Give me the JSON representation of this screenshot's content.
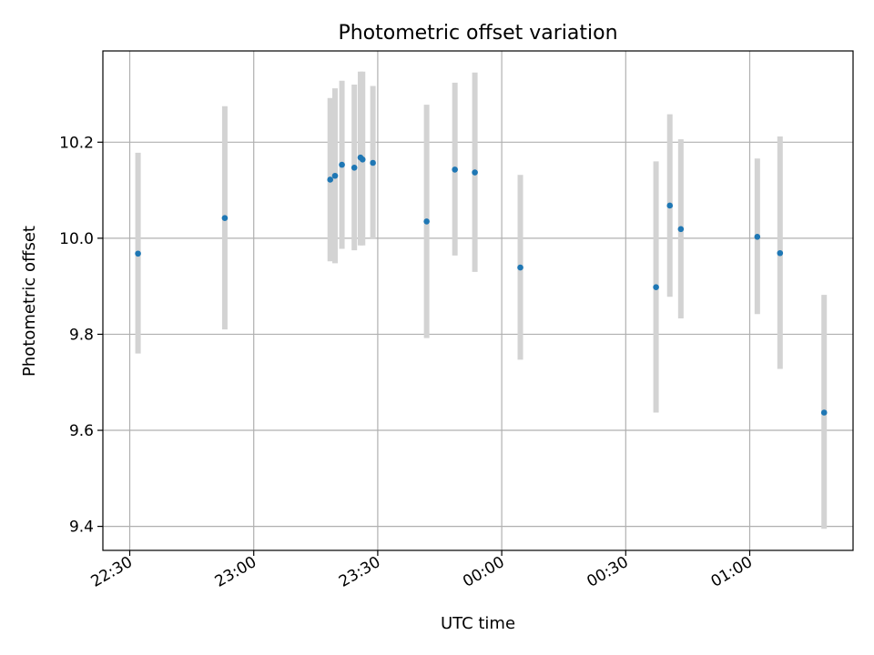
{
  "chart_data": {
    "type": "scatter",
    "title": "Photometric offset variation",
    "xlabel": "UTC time",
    "ylabel": "Photometric offset",
    "x_ticks": [
      "22:30",
      "23:00",
      "23:30",
      "00:00",
      "00:30",
      "01:00"
    ],
    "y_ticks": [
      "9.4",
      "9.6",
      "9.8",
      "10.0",
      "10.2"
    ],
    "xlim": [
      "22:23:30",
      "01:25:00"
    ],
    "ylim": [
      9.35,
      10.39
    ],
    "grid": true,
    "colors": {
      "point": "#1f77b4",
      "errorbar": "#d3d3d3",
      "grid": "#b0b0b0"
    },
    "series": [
      {
        "points": [
          {
            "x": "22:32:00",
            "y": 9.968,
            "ylow": 9.76,
            "yhigh": 10.178
          },
          {
            "x": "22:53:00",
            "y": 10.042,
            "ylow": 9.81,
            "yhigh": 10.275
          },
          {
            "x": "23:18:30",
            "y": 10.122,
            "ylow": 9.952,
            "yhigh": 10.292
          },
          {
            "x": "23:19:40",
            "y": 10.13,
            "ylow": 9.948,
            "yhigh": 10.312
          },
          {
            "x": "23:21:20",
            "y": 10.153,
            "ylow": 9.978,
            "yhigh": 10.328
          },
          {
            "x": "23:24:20",
            "y": 10.147,
            "ylow": 9.975,
            "yhigh": 10.32
          },
          {
            "x": "23:25:50",
            "y": 10.168,
            "ylow": 9.985,
            "yhigh": 10.347
          },
          {
            "x": "23:26:20",
            "y": 10.164,
            "ylow": 9.985,
            "yhigh": 10.347
          },
          {
            "x": "23:28:50",
            "y": 10.157,
            "ylow": 9.998,
            "yhigh": 10.317
          },
          {
            "x": "23:41:50",
            "y": 10.035,
            "ylow": 9.792,
            "yhigh": 10.278
          },
          {
            "x": "23:48:40",
            "y": 10.143,
            "ylow": 9.964,
            "yhigh": 10.324
          },
          {
            "x": "23:53:30",
            "y": 10.137,
            "ylow": 9.93,
            "yhigh": 10.345
          },
          {
            "x": "00:04:30",
            "y": 9.939,
            "ylow": 9.747,
            "yhigh": 10.132
          },
          {
            "x": "00:37:20",
            "y": 9.898,
            "ylow": 9.637,
            "yhigh": 10.16
          },
          {
            "x": "00:40:40",
            "y": 10.068,
            "ylow": 9.878,
            "yhigh": 10.258
          },
          {
            "x": "00:43:20",
            "y": 10.019,
            "ylow": 9.833,
            "yhigh": 10.206
          },
          {
            "x": "01:01:50",
            "y": 10.003,
            "ylow": 9.842,
            "yhigh": 10.166
          },
          {
            "x": "01:07:20",
            "y": 9.969,
            "ylow": 9.728,
            "yhigh": 10.212
          },
          {
            "x": "01:18:00",
            "y": 9.637,
            "ylow": 9.395,
            "yhigh": 9.882
          }
        ]
      }
    ]
  }
}
